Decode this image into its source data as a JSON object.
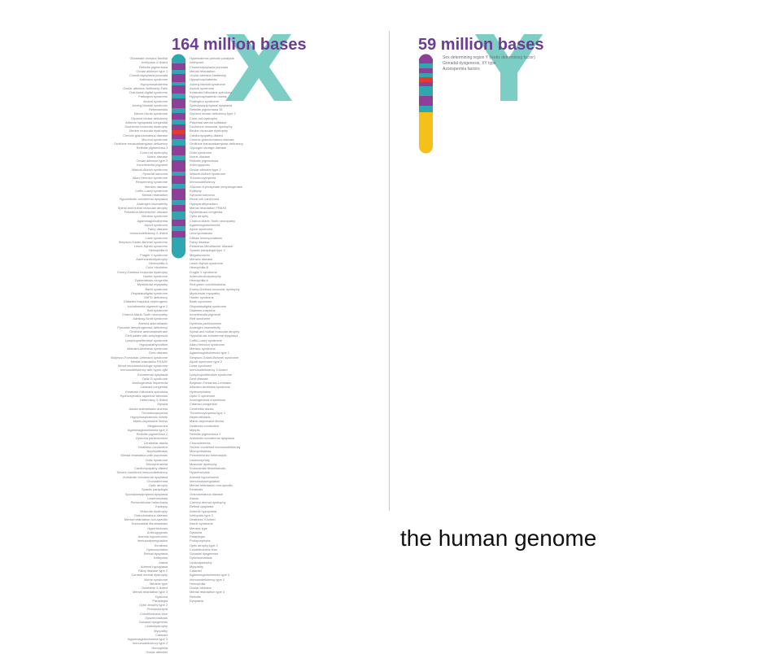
{
  "x_chromosome": {
    "letter": "X",
    "base_count": "164 million bases",
    "colors": {
      "letter": "#7ccdc4",
      "label": "#6c3d93",
      "band_dark": "#8e3f98",
      "band_light": "#2fa6b0",
      "centromere": "#e43b2e"
    },
    "genes_left": [
      "Glutamate receptor familial",
      "Ichthyosis X-linked",
      "Retinitis pigmentosa",
      "Ocular albinism type 1",
      "Chondrodysplasia punctata",
      "Kallmann syndrome",
      "Hypophosphatemia",
      "Ocular albinism Nettleship-Falls",
      "Oral-facial-digital syndrome",
      "Partington syndrome",
      "Aicardi syndrome",
      "Juberg-Marsidi syndrome",
      "Retinoschisis",
      "Nance-Horan syndrome",
      "Glycerol kinase deficiency",
      "Adrenal hypoplasia congenital",
      "Duchenne muscular dystrophy",
      "Becker muscular dystrophy",
      "Chronic granulomatous disease",
      "McLeod syndrome",
      "Ornithine transcarbamylase deficiency",
      "Retinitis pigmentosa 3",
      "Cone-rod dystrophy",
      "Norrie disease",
      "Ocular albinism type 2",
      "Incontinentia pigmenti",
      "Wiskott-Aldrich syndrome",
      "Synovial sarcoma",
      "Allan-Herndon syndrome",
      "Renpenning syndrome",
      "Menkes disease",
      "Coffin-Lowry syndrome",
      "Mental retardation",
      "Hypohidrotic ectodermal dysplasia",
      "Androgen insensitivity",
      "Spinal and bulbar muscular atrophy",
      "Pelizaeus-Merzbacher disease",
      "Menkes syndrome",
      "Agammaglobulinemia",
      "Alport syndrome",
      "Fabry disease",
      "Immunodeficiency X-linked",
      "Lowe syndrome",
      "Simpson-Golabi-Behmel syndrome",
      "Lesch-Nyhan syndrome",
      "Hemophilia B",
      "Fragile X syndrome",
      "Adrenoleukodystrophy",
      "Hemophilia A",
      "Color blindness",
      "Emery-Dreifuss muscular dystrophy",
      "Hunter syndrome",
      "Dyskeratosis congenita",
      "Myotubular myopathy",
      "Barth syndrome",
      "Otopalatodigital syndrome",
      "G6PD deficiency",
      "Diabetes insipidus nephrogenic",
      "Incontinentia pigmenti type 2",
      "Rett syndrome",
      "Charcot-Marie-Tooth neuropathy",
      "Aarskog-Scott syndrome",
      "Anemia sideroblastic",
      "Pyruvate dehydrogenase deficiency",
      "Ornithine aminotransferase",
      "Cleft palate with ankyloglossia",
      "Lymphoproliferative syndrome",
      "Hypoparathyroidism",
      "Albinism-deafness syndrome",
      "Dent disease",
      "Borjeson-Forssman-Lehmann syndrome",
      "Mental retardation FRAXE",
      "Wood neuroimmunologic syndrome",
      "Immunodeficiency with hyper-IgM",
      "Ectodermal dysplasia",
      "Opitz G syndrome",
      "Amelogenesis imperfecta",
      "Cataract congenital",
      "Keratosis follicularis spinulosa",
      "Hydrocephalus aqueduct stenosis",
      "Heterotaxy X-linked",
      "Myopia",
      "Ataxia sideroblastic anemia",
      "Thrombocytopenia",
      "Hypophosphatemic rickets",
      "Manic-depressive illness",
      "Megalocornea",
      "Agammaglobulinemia type 2",
      "Retinitis pigmentosa 2",
      "Dystonia parkinsonism",
      "Cerebellar ataxia",
      "Deafness conductive",
      "Nephrolithiasis",
      "Mental retardation with psychosis",
      "Goltz syndrome",
      "Microphthalmia",
      "Cardiomyopathy dilated",
      "Severe combined immunodeficiency",
      "Anhidrotic ectodermal dysplasia",
      "Choroideremia",
      "Optic atrophy",
      "Spastic paraplegia",
      "Spondyloepiphyseal dysplasia",
      "Lissencephaly",
      "Periventricular heterotopia",
      "Epilepsy",
      "Muscular dystrophy",
      "Granulomatous disease",
      "Mental retardation non-specific",
      "Endocardial fibroelastosis",
      "Hypertrichosis",
      "Arthrogryposis",
      "Anemia hypochromic",
      "Immunodysregulation",
      "Keratosis",
      "Hydrocephalus",
      "Retinal dysplasia",
      "Ichthyosis",
      "Ataxia",
      "Adrenal hypoplasia",
      "Fabry disease type 2",
      "Corneal dermal dystrophy",
      "Norrie syndrome",
      "Menkes type",
      "Deafness X-linked",
      "Mental retardation type 3",
      "Dystonia",
      "Paraplegia",
      "Optic atrophy type 2",
      "Protoporphyria",
      "Colorblindness blue",
      "Dyschromatosis",
      "Gonadal dysgenesis",
      "Leukodystrophy",
      "Myopathy",
      "Cataract",
      "Agammaglobulinemia type 3",
      "Immunodeficiency type 2",
      "Hemophilia",
      "Ocular albinism"
    ],
    "genes_right": [
      "Hyperkalemic periodic paralysis",
      "Ichthyosis",
      "Chondrodysplasia punctata",
      "Mental retardation",
      "Ocular albinism Nettleship",
      "Hypophosphatemia",
      "Juberg-Marsidi syndrome",
      "Aicardi syndrome",
      "Keratosis follicularis spinulosa",
      "Hypophosphatemic rickets",
      "Partington syndrome",
      "Spondyloepiphyseal dysplasia",
      "Retinitis pigmentosa 15",
      "Glycerol kinase deficiency type 2",
      "Cone-rod dystrophy",
      "Placental steroid sulfatase",
      "Duchenne muscular dystrophy",
      "Becker muscular dystrophy",
      "Cardiomyopathy dilated",
      "Chronic granulomatous disease",
      "Ornithine transcarbamylase deficiency",
      "Glycogen storage disease",
      "Goltz syndrome",
      "Norrie disease",
      "Retinitis pigmentosa",
      "Arthrogryposis",
      "Ocular albinism type 2",
      "Wiskott-Aldrich syndrome",
      "Thrombocytopenia",
      "Immunodeficiency",
      "Glucose-6-phosphate dehydrogenase",
      "Epilepsy",
      "Synovial sarcoma",
      "Renal cell carcinoma",
      "Hypoparathyroidism",
      "Mental retardation FRAXE",
      "Dyskeratosis congenita",
      "Optic atrophy",
      "Charcot-Marie-Tooth neuropathy",
      "Agammaglobulinemia",
      "Alport syndrome",
      "Leiomyomatosis",
      "Diffuse leiomyomatosis",
      "Fabry disease",
      "Pelizaeus-Merzbacher disease",
      "Spastic paraplegia type 2",
      "Megalocornea",
      "Menkes disease",
      "Lesch-Nyhan syndrome",
      "Hemophilia B",
      "Fragile X syndrome",
      "Adrenoleukodystrophy",
      "Hemophilia A",
      "Red-green colorblindness",
      "Emery-Dreifuss muscular dystrophy",
      "Myotubular myopathy",
      "Hunter syndrome",
      "Barth syndrome",
      "Otopalatodigital syndrome",
      "Diabetes insipidus",
      "Incontinentia pigmenti",
      "Rett syndrome",
      "Dystonia parkinsonism",
      "Androgen insensitivity",
      "Spinal and bulbar muscular atrophy",
      "Hypohidrotic ectodermal dysplasia",
      "Coffin-Lowry syndrome",
      "Allan-Herndon syndrome",
      "Menkes syndrome",
      "Agammaglobulinemia type 1",
      "Simpson-Golabi-Behmel syndrome",
      "Alport syndrome type 2",
      "Lowe syndrome",
      "Immunodeficiency X-linked",
      "Lymphoproliferative syndrome",
      "Dent disease",
      "Borjeson-Forssman-Lehmann",
      "Albinism-deafness syndrome",
      "Hydrocephalus",
      "Opitz G syndrome",
      "Amelogenesis imperfecta",
      "Cataract congenital",
      "Cerebellar ataxia",
      "Thrombocytopenia type 2",
      "Nephrolithiasis",
      "Manic-depressive illness",
      "Deafness conductive",
      "Myopia",
      "Retinitis pigmentosa 2",
      "Anhidrotic ectodermal dysplasia",
      "Choroideremia",
      "Severe combined immunodeficiency",
      "Microphthalmia",
      "Periventricular heterotopia",
      "Lissencephaly",
      "Muscular dystrophy",
      "Endocardial fibroelastosis",
      "Hypertrichosis",
      "Anemia hypochromic",
      "Immunodysregulation",
      "Mental retardation non-specific",
      "Keratosis",
      "Granulomatous disease",
      "Ataxia",
      "Corneal dermal dystrophy",
      "Retinal dysplasia",
      "Adrenal hypoplasia",
      "Ichthyosis type 2",
      "Deafness X-linked",
      "Norrie syndrome",
      "Menkes type",
      "Dystonia",
      "Paraplegia",
      "Protoporphyria",
      "Optic atrophy type 2",
      "Colorblindness blue",
      "Gonadal dysgenesis",
      "Dyschromatosis",
      "Leukodystrophy",
      "Myopathy",
      "Cataract",
      "Agammaglobulinemia type 3",
      "Immunodeficiency type 2",
      "Hemophilia",
      "Ocular albinism",
      "Mental retardation type 3",
      "Retinitis",
      "Dysplasia"
    ]
  },
  "y_chromosome": {
    "letter": "Y",
    "base_count": "59 million bases",
    "colors": {
      "letter": "#7ccdc4",
      "label": "#6c3d93",
      "band_dark": "#8e3f98",
      "band_light": "#2fa6b0",
      "centromere": "#e43b2e",
      "heterochromatin": "#f5c018"
    },
    "traits": [
      "Sex determining region Y (testis determining factor)",
      "Gonadal dysgenesis, XY type",
      "Azoospermia factors"
    ]
  },
  "caption": "the human genome"
}
